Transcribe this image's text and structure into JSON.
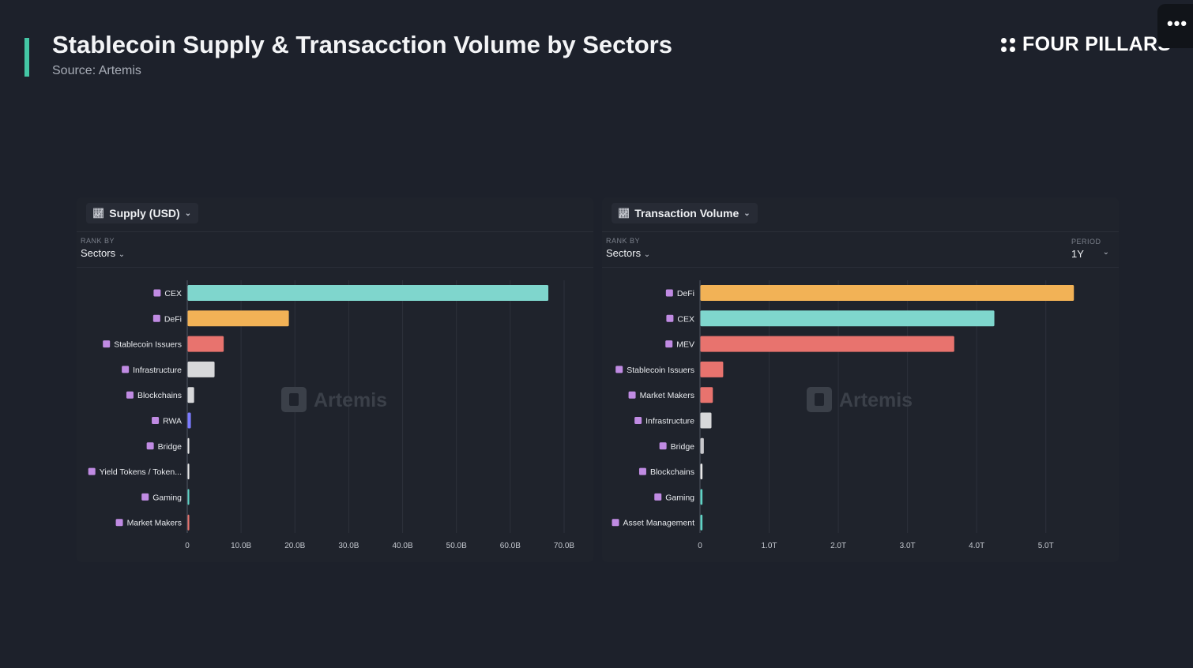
{
  "header": {
    "title": "Stablecoin Supply & Transacction Volume by Sectors",
    "source": "Source: Artemis",
    "brand": "FOUR PILLARS",
    "more_label": "•••"
  },
  "left_panel": {
    "metric_label": "Supply (USD)",
    "rank_by_label": "RANK BY",
    "rank_by_value": "Sectors",
    "watermark": "Artemis"
  },
  "right_panel": {
    "metric_label": "Transaction Volume",
    "rank_by_label": "RANK BY",
    "rank_by_value": "Sectors",
    "period_label": "PERIOD",
    "period_value": "1Y",
    "watermark": "Artemis"
  },
  "chart_data": [
    {
      "type": "bar",
      "orientation": "horizontal",
      "categories": [
        "CEX",
        "DeFi",
        "Stablecoin Issuers",
        "Infrastructure",
        "Blockchains",
        "RWA",
        "Bridge",
        "Yield Tokens / Token...",
        "Gaming",
        "Market Makers"
      ],
      "values": [
        67.0,
        18.8,
        6.7,
        5.0,
        1.2,
        0.6,
        0.3,
        0.3,
        0.3,
        0.3
      ],
      "value_unit": "B USD",
      "colors": [
        "#7fd6cd",
        "#f2b256",
        "#e8736e",
        "#d7d8da",
        "#d7d8da",
        "#7b7bff",
        "#e8e8e8",
        "#e8e8e8",
        "#5fd3c5",
        "#e8736e"
      ],
      "xlim": [
        0,
        70
      ],
      "xticks": [
        0,
        10,
        20,
        30,
        40,
        50,
        60,
        70
      ],
      "xtick_labels": [
        "0",
        "10.0B",
        "20.0B",
        "30.0B",
        "40.0B",
        "50.0B",
        "60.0B",
        "70.0B"
      ],
      "grid": "vertical"
    },
    {
      "type": "bar",
      "orientation": "horizontal",
      "categories": [
        "DeFi",
        "CEX",
        "MEV",
        "Stablecoin Issuers",
        "Market Makers",
        "Infrastructure",
        "Bridge",
        "Blockchains",
        "Gaming",
        "Asset Management"
      ],
      "values": [
        5.4,
        4.25,
        3.67,
        0.33,
        0.18,
        0.16,
        0.05,
        0.03,
        0.03,
        0.03
      ],
      "value_unit": "T USD",
      "colors": [
        "#f2b256",
        "#7fd6cd",
        "#e8736e",
        "#e8736e",
        "#e8736e",
        "#d7d8da",
        "#c8c8cc",
        "#e8e8e8",
        "#5fd3c5",
        "#5fd3c5"
      ],
      "xlim": [
        0,
        5.5
      ],
      "xticks": [
        0,
        1,
        2,
        3,
        4,
        5
      ],
      "xtick_labels": [
        "0",
        "1.0T",
        "2.0T",
        "3.0T",
        "4.0T",
        "5.0T"
      ],
      "grid": "vertical"
    }
  ],
  "colors": {
    "background": "#1d212b",
    "panel": "#1f232c",
    "accent": "#44c7a5",
    "category_icon": "#c08be3"
  }
}
